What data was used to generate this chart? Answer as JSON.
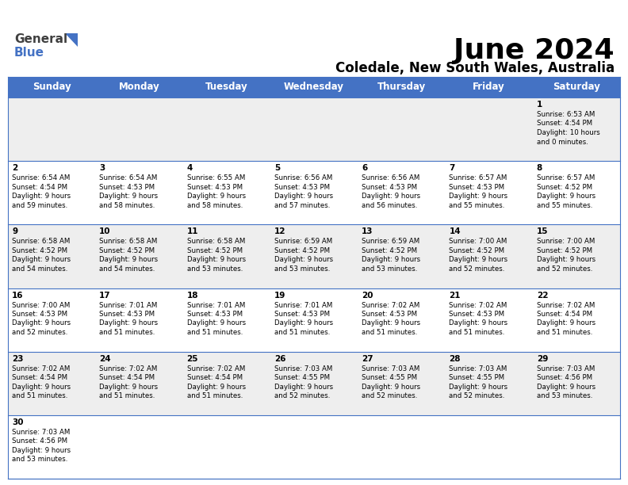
{
  "title": "June 2024",
  "subtitle": "Coledale, New South Wales, Australia",
  "header_bg": "#4472C4",
  "header_text_color": "#FFFFFF",
  "days_of_week": [
    "Sunday",
    "Monday",
    "Tuesday",
    "Wednesday",
    "Thursday",
    "Friday",
    "Saturday"
  ],
  "bg_color": "#FFFFFF",
  "cell_alt_color": "#EEEEEE",
  "border_color": "#4472C4",
  "text_color": "#000000",
  "calendar": [
    [
      {
        "day": "",
        "sunrise": "",
        "sunset": "",
        "daylight": ""
      },
      {
        "day": "",
        "sunrise": "",
        "sunset": "",
        "daylight": ""
      },
      {
        "day": "",
        "sunrise": "",
        "sunset": "",
        "daylight": ""
      },
      {
        "day": "",
        "sunrise": "",
        "sunset": "",
        "daylight": ""
      },
      {
        "day": "",
        "sunrise": "",
        "sunset": "",
        "daylight": ""
      },
      {
        "day": "",
        "sunrise": "",
        "sunset": "",
        "daylight": ""
      },
      {
        "day": "1",
        "sunrise": "6:53 AM",
        "sunset": "4:54 PM",
        "daylight": "10 hours\nand 0 minutes."
      }
    ],
    [
      {
        "day": "2",
        "sunrise": "6:54 AM",
        "sunset": "4:54 PM",
        "daylight": "9 hours\nand 59 minutes."
      },
      {
        "day": "3",
        "sunrise": "6:54 AM",
        "sunset": "4:53 PM",
        "daylight": "9 hours\nand 58 minutes."
      },
      {
        "day": "4",
        "sunrise": "6:55 AM",
        "sunset": "4:53 PM",
        "daylight": "9 hours\nand 58 minutes."
      },
      {
        "day": "5",
        "sunrise": "6:56 AM",
        "sunset": "4:53 PM",
        "daylight": "9 hours\nand 57 minutes."
      },
      {
        "day": "6",
        "sunrise": "6:56 AM",
        "sunset": "4:53 PM",
        "daylight": "9 hours\nand 56 minutes."
      },
      {
        "day": "7",
        "sunrise": "6:57 AM",
        "sunset": "4:53 PM",
        "daylight": "9 hours\nand 55 minutes."
      },
      {
        "day": "8",
        "sunrise": "6:57 AM",
        "sunset": "4:52 PM",
        "daylight": "9 hours\nand 55 minutes."
      }
    ],
    [
      {
        "day": "9",
        "sunrise": "6:58 AM",
        "sunset": "4:52 PM",
        "daylight": "9 hours\nand 54 minutes."
      },
      {
        "day": "10",
        "sunrise": "6:58 AM",
        "sunset": "4:52 PM",
        "daylight": "9 hours\nand 54 minutes."
      },
      {
        "day": "11",
        "sunrise": "6:58 AM",
        "sunset": "4:52 PM",
        "daylight": "9 hours\nand 53 minutes."
      },
      {
        "day": "12",
        "sunrise": "6:59 AM",
        "sunset": "4:52 PM",
        "daylight": "9 hours\nand 53 minutes."
      },
      {
        "day": "13",
        "sunrise": "6:59 AM",
        "sunset": "4:52 PM",
        "daylight": "9 hours\nand 53 minutes."
      },
      {
        "day": "14",
        "sunrise": "7:00 AM",
        "sunset": "4:52 PM",
        "daylight": "9 hours\nand 52 minutes."
      },
      {
        "day": "15",
        "sunrise": "7:00 AM",
        "sunset": "4:52 PM",
        "daylight": "9 hours\nand 52 minutes."
      }
    ],
    [
      {
        "day": "16",
        "sunrise": "7:00 AM",
        "sunset": "4:53 PM",
        "daylight": "9 hours\nand 52 minutes."
      },
      {
        "day": "17",
        "sunrise": "7:01 AM",
        "sunset": "4:53 PM",
        "daylight": "9 hours\nand 51 minutes."
      },
      {
        "day": "18",
        "sunrise": "7:01 AM",
        "sunset": "4:53 PM",
        "daylight": "9 hours\nand 51 minutes."
      },
      {
        "day": "19",
        "sunrise": "7:01 AM",
        "sunset": "4:53 PM",
        "daylight": "9 hours\nand 51 minutes."
      },
      {
        "day": "20",
        "sunrise": "7:02 AM",
        "sunset": "4:53 PM",
        "daylight": "9 hours\nand 51 minutes."
      },
      {
        "day": "21",
        "sunrise": "7:02 AM",
        "sunset": "4:53 PM",
        "daylight": "9 hours\nand 51 minutes."
      },
      {
        "day": "22",
        "sunrise": "7:02 AM",
        "sunset": "4:54 PM",
        "daylight": "9 hours\nand 51 minutes."
      }
    ],
    [
      {
        "day": "23",
        "sunrise": "7:02 AM",
        "sunset": "4:54 PM",
        "daylight": "9 hours\nand 51 minutes."
      },
      {
        "day": "24",
        "sunrise": "7:02 AM",
        "sunset": "4:54 PM",
        "daylight": "9 hours\nand 51 minutes."
      },
      {
        "day": "25",
        "sunrise": "7:02 AM",
        "sunset": "4:54 PM",
        "daylight": "9 hours\nand 51 minutes."
      },
      {
        "day": "26",
        "sunrise": "7:03 AM",
        "sunset": "4:55 PM",
        "daylight": "9 hours\nand 52 minutes."
      },
      {
        "day": "27",
        "sunrise": "7:03 AM",
        "sunset": "4:55 PM",
        "daylight": "9 hours\nand 52 minutes."
      },
      {
        "day": "28",
        "sunrise": "7:03 AM",
        "sunset": "4:55 PM",
        "daylight": "9 hours\nand 52 minutes."
      },
      {
        "day": "29",
        "sunrise": "7:03 AM",
        "sunset": "4:56 PM",
        "daylight": "9 hours\nand 53 minutes."
      }
    ],
    [
      {
        "day": "30",
        "sunrise": "7:03 AM",
        "sunset": "4:56 PM",
        "daylight": "9 hours\nand 53 minutes."
      },
      {
        "day": "",
        "sunrise": "",
        "sunset": "",
        "daylight": ""
      },
      {
        "day": "",
        "sunrise": "",
        "sunset": "",
        "daylight": ""
      },
      {
        "day": "",
        "sunrise": "",
        "sunset": "",
        "daylight": ""
      },
      {
        "day": "",
        "sunrise": "",
        "sunset": "",
        "daylight": ""
      },
      {
        "day": "",
        "sunrise": "",
        "sunset": "",
        "daylight": ""
      },
      {
        "day": "",
        "sunrise": "",
        "sunset": "",
        "daylight": ""
      }
    ]
  ]
}
